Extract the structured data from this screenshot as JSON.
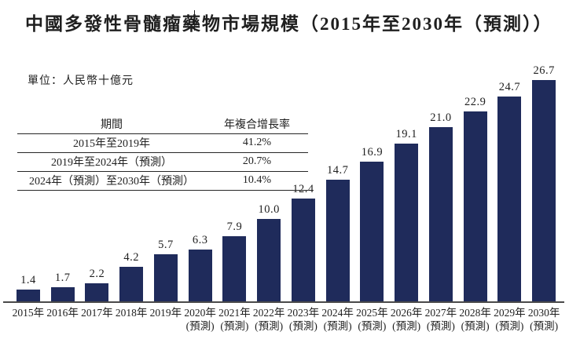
{
  "title": "中國多發性骨髓瘤藥物市場規模（2015年至2030年（預測））",
  "unit_label": "單位：人民幣十億元",
  "cagr_table": {
    "headers": [
      "期間",
      "年複合增長率"
    ],
    "rows": [
      [
        "2015年至2019年",
        "41.2%"
      ],
      [
        "2019年至2024年（預測）",
        "20.7%"
      ],
      [
        "2024年（預測）至2030年（預測）",
        "10.4%"
      ]
    ]
  },
  "chart_data": {
    "type": "bar",
    "title": "中國多發性骨髓瘤藥物市場規模（2015年至2030年（預測））",
    "ylabel": "人民幣十億元",
    "xlabel": "",
    "categories": [
      "2015年",
      "2016年",
      "2017年",
      "2018年",
      "2019年",
      "2020年",
      "2021年",
      "2022年",
      "2023年",
      "2024年",
      "2025年",
      "2026年",
      "2027年",
      "2028年",
      "2029年",
      "2030年"
    ],
    "forecast_suffix": "(預測)",
    "forecast_start_index": 5,
    "values": [
      1.4,
      1.7,
      2.2,
      4.2,
      5.7,
      6.3,
      7.9,
      10.0,
      12.4,
      14.7,
      16.9,
      19.1,
      21.0,
      22.9,
      24.7,
      26.7
    ],
    "value_labels_shown": true,
    "ylim": [
      0,
      28
    ],
    "grid": false,
    "legend": "none",
    "bar_color": "#1F2B5B"
  },
  "colors": {
    "bar": "#1F2B5B",
    "axis": "#4a4a4a",
    "text": "#1f1f1f",
    "background": "#ffffff"
  }
}
